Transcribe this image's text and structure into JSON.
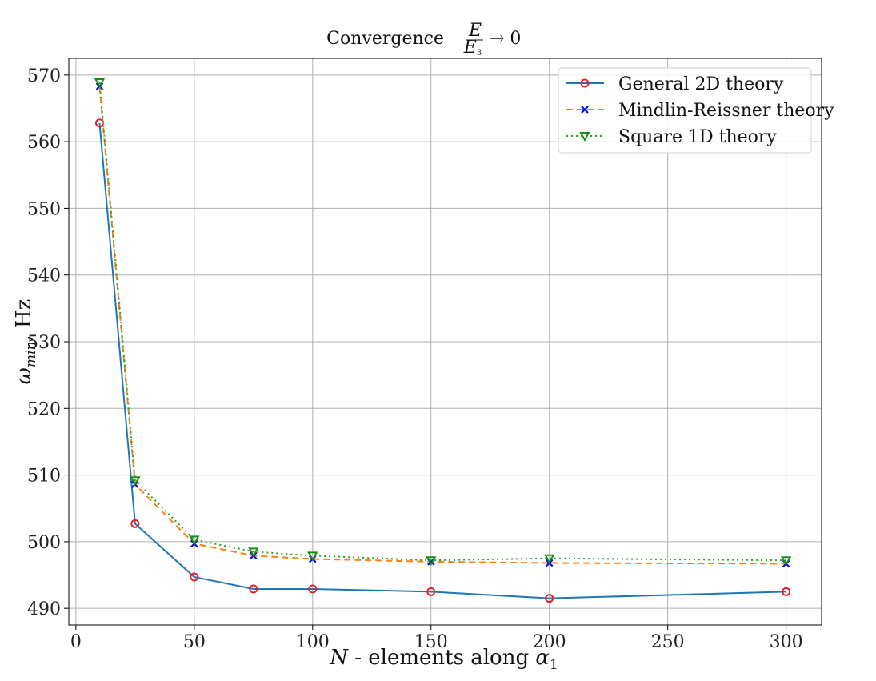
{
  "chart_data": {
    "type": "line",
    "title": "Convergence",
    "title_math": {
      "numerator": "E",
      "denominator": "E",
      "denominator_sub": "3",
      "suffix": "→ 0"
    },
    "xlabel": "N - elements along α1",
    "xlabel_parts": {
      "var": "N",
      "text": " - elements along ",
      "greek": "α",
      "sub": "1"
    },
    "ylabel": "ωmin, Hz",
    "ylabel_parts": {
      "greek": "ω",
      "sub": "min",
      "text": ", Hz"
    },
    "xlim": [
      -3,
      315
    ],
    "ylim": [
      487.5,
      572.5
    ],
    "xticks": [
      0,
      50,
      100,
      150,
      200,
      250,
      300
    ],
    "yticks": [
      490,
      500,
      510,
      520,
      530,
      540,
      550,
      560,
      570
    ],
    "grid": true,
    "legend_position": "top-right",
    "x": [
      10,
      25,
      50,
      75,
      100,
      150,
      200,
      300
    ],
    "series": [
      {
        "name": "General 2D theory",
        "values": [
          562.8,
          502.7,
          494.7,
          492.9,
          492.9,
          492.5,
          491.5,
          492.5
        ],
        "color": "#1f77b4",
        "line_style": "solid",
        "marker": "circle",
        "marker_color": "#e8202a"
      },
      {
        "name": "Mindlin-Reissner theory",
        "values": [
          568.3,
          508.6,
          499.7,
          497.9,
          497.4,
          497.0,
          496.8,
          496.7
        ],
        "color": "#ff7f0e",
        "line_style": "dashed",
        "marker": "x",
        "marker_color": "#0a0adf"
      },
      {
        "name": "Square 1D theory",
        "values": [
          568.9,
          509.2,
          500.3,
          498.5,
          497.9,
          497.2,
          497.5,
          497.2
        ],
        "color": "#2ca02c",
        "line_style": "dotted",
        "marker": "triangle-down",
        "marker_color": "#1a8a1a"
      }
    ]
  }
}
